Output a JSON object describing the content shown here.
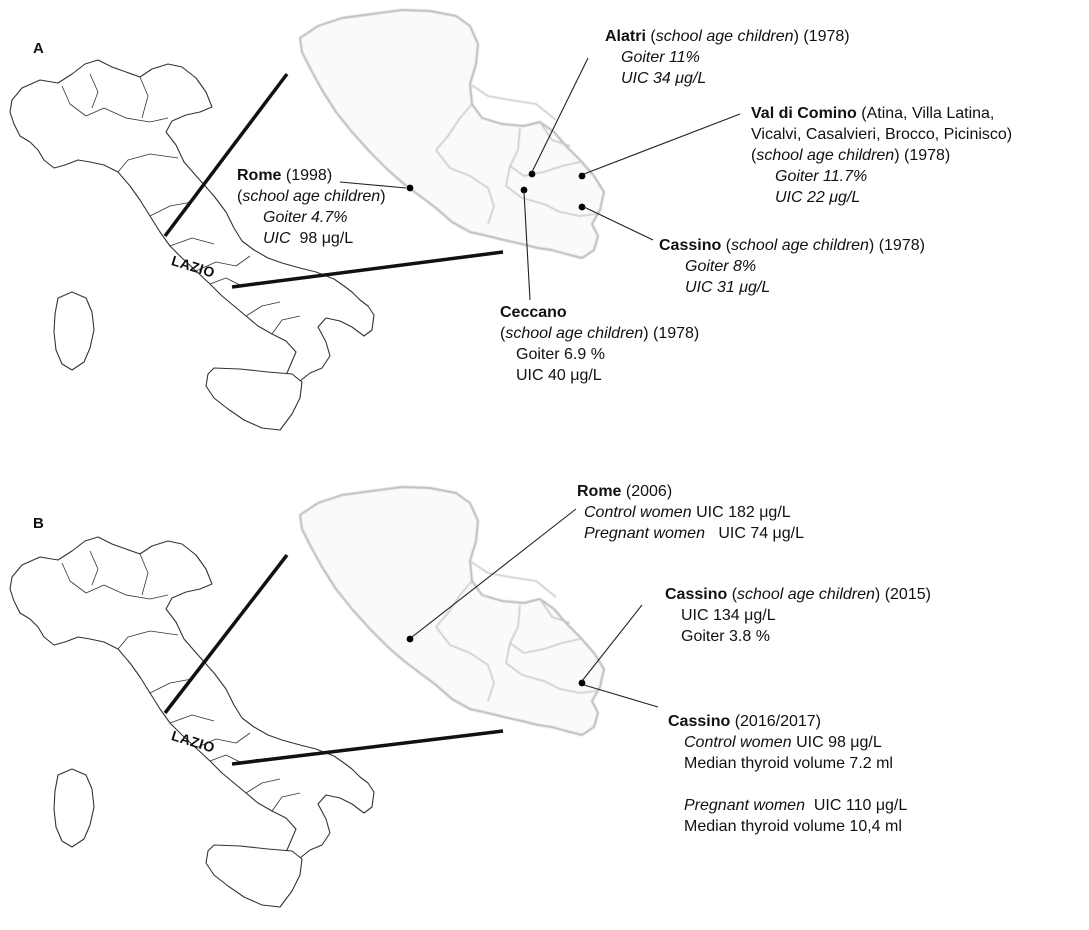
{
  "panels": [
    {
      "label": "A",
      "region_label": "LAZIO",
      "annotations": {
        "rome": {
          "place": "Rome",
          "year": "(1998)",
          "group": "school age children",
          "goiter": "Goiter 4.7%",
          "uic_label": "UIC",
          "uic_value": "98 μg/L"
        },
        "alatri": {
          "place": "Alatri",
          "group": "school age children",
          "year": "(1978)",
          "goiter": "Goiter 11%",
          "uic": "UIC  34 μg/L"
        },
        "val_di_comino": {
          "place": "Val di Comino",
          "towns_line1": "(Atina, Villa Latina,",
          "towns_line2": "Vicalvi, Casalvieri, Brocco, Picinisco)",
          "group": "school age children",
          "year": "(1978)",
          "goiter": "Goiter 11.7%",
          "uic": "UIC  22 μg/L"
        },
        "cassino": {
          "place": "Cassino",
          "group": "school age children",
          "year": "(1978)",
          "goiter": "Goiter 8%",
          "uic": "UIC  31 μg/L"
        },
        "ceccano": {
          "place": "Ceccano",
          "group": "school age children",
          "year": "(1978)",
          "goiter": "Goiter 6.9 %",
          "uic": "UIC   40 μg/L"
        }
      }
    },
    {
      "label": "B",
      "region_label": "LAZIO",
      "annotations": {
        "rome": {
          "place": "Rome",
          "year": "(2006)",
          "control_label": "Control women",
          "control_uic": "UIC 182 μg/L",
          "pregnant_label": "Pregnant women",
          "pregnant_uic": "UIC  74 μg/L"
        },
        "cassino_2015": {
          "place": "Cassino",
          "group": "school age children",
          "year": "(2015)",
          "uic": "UIC  134 μg/L",
          "goiter": "Goiter 3.8 %"
        },
        "cassino_2016": {
          "place": "Cassino",
          "year": "(2016/2017)",
          "control_label": "Control women",
          "control_uic": "UIC 98 μg/L",
          "control_volume": "Median thyroid volume 7.2 ml",
          "pregnant_label": "Pregnant women",
          "pregnant_uic": "UIC  110 μg/L",
          "pregnant_volume": "Median thyroid volume 10,4 ml"
        }
      }
    }
  ],
  "colors": {
    "italy_outline": "#333333",
    "lazio_outline": "#bdbdbd",
    "lazio_fill": "#fafafa",
    "leader_lines": "#222222",
    "markers": "#000000"
  }
}
